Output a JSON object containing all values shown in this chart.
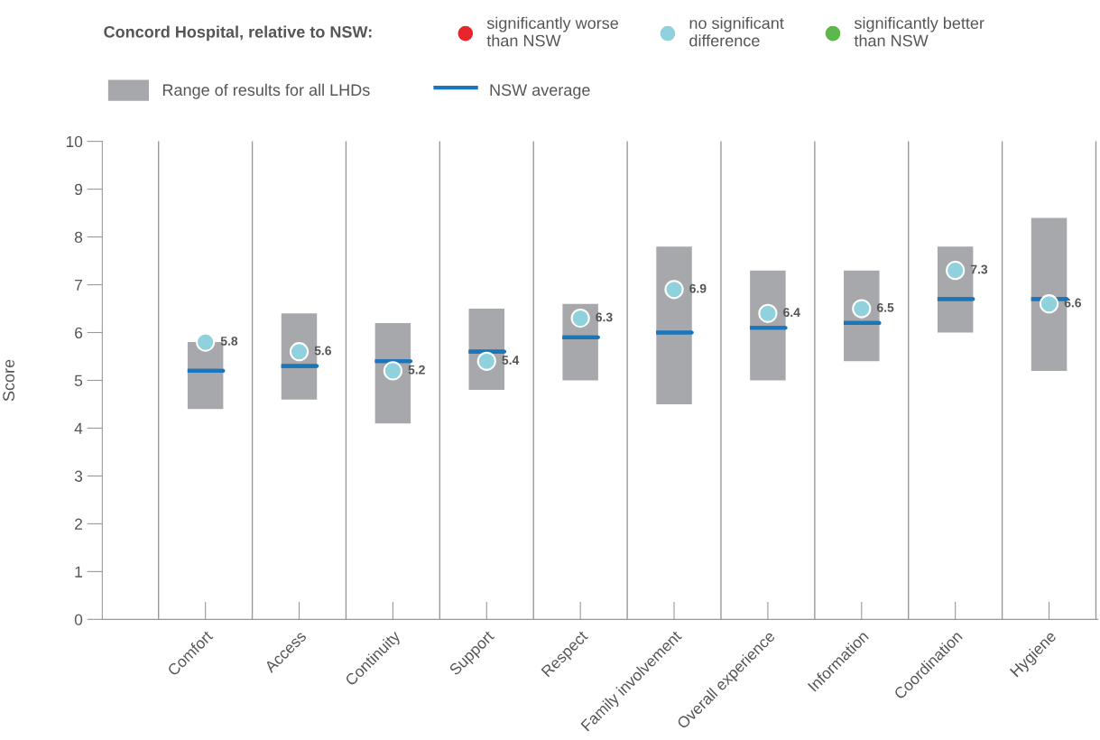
{
  "chart_data": {
    "type": "bar",
    "ylabel": "Score",
    "legend_title": "Concord Hospital, relative to NSW:",
    "legend": "top",
    "categories": [
      "Comfort",
      "Access",
      "Continuity",
      "Support",
      "Respect",
      "Family involvement",
      "Overall experience",
      "Information",
      "Coordination",
      "Hygiene"
    ],
    "ylim": [
      0,
      10
    ],
    "yticks": [
      0,
      1,
      2,
      3,
      4,
      5,
      6,
      7,
      8,
      9,
      10
    ],
    "grid": "x",
    "series": [
      {
        "name": "significantly worse\nthan NSW",
        "type": "scatter",
        "marker": "circle",
        "color": "#e8262a",
        "values": [
          null,
          null,
          null,
          null,
          null,
          null,
          null,
          null,
          null,
          null
        ]
      },
      {
        "name": "no significant\ndifference",
        "type": "scatter",
        "marker": "circle",
        "color": "#8fd1dc",
        "values": [
          5.8,
          5.6,
          5.2,
          5.4,
          6.3,
          6.9,
          6.4,
          6.5,
          7.3,
          6.6
        ],
        "value_labels": [
          "5.8",
          "5.6",
          "5.2",
          "5.4",
          "6.3",
          "6.9",
          "6.4",
          "6.5",
          "7.3",
          "6.6"
        ]
      },
      {
        "name": "significantly better\nthan NSW",
        "type": "scatter",
        "marker": "circle",
        "color": "#5cb84a",
        "values": [
          null,
          null,
          null,
          null,
          null,
          null,
          null,
          null,
          null,
          null
        ]
      },
      {
        "name": "Range of results for all LHDs",
        "color": "#a7a8ab",
        "base": [
          4.4,
          4.6,
          4.1,
          4.8,
          5.0,
          4.5,
          5.0,
          5.4,
          6.0,
          5.2
        ],
        "values": [
          1.4,
          1.8,
          2.1,
          1.7,
          1.6,
          3.3,
          2.3,
          1.9,
          1.8,
          3.2
        ]
      },
      {
        "name": "NSW average",
        "type": "box",
        "color": "#1a75bb",
        "boxes": [
          {
            "low": 5.2,
            "q1": 5.2,
            "median": 5.2,
            "q3": 5.2,
            "high": 5.2
          },
          {
            "low": 5.3,
            "q1": 5.3,
            "median": 5.3,
            "q3": 5.3,
            "high": 5.3
          },
          {
            "low": 5.4,
            "q1": 5.4,
            "median": 5.4,
            "q3": 5.4,
            "high": 5.4
          },
          {
            "low": 5.6,
            "q1": 5.6,
            "median": 5.6,
            "q3": 5.6,
            "high": 5.6
          },
          {
            "low": 5.9,
            "q1": 5.9,
            "median": 5.9,
            "q3": 5.9,
            "high": 5.9
          },
          {
            "low": 6.0,
            "q1": 6.0,
            "median": 6.0,
            "q3": 6.0,
            "high": 6.0
          },
          {
            "low": 6.1,
            "q1": 6.1,
            "median": 6.1,
            "q3": 6.1,
            "high": 6.1
          },
          {
            "low": 6.2,
            "q1": 6.2,
            "median": 6.2,
            "q3": 6.2,
            "high": 6.2
          },
          {
            "low": 6.7,
            "q1": 6.7,
            "median": 6.7,
            "q3": 6.7,
            "high": 6.7
          },
          {
            "low": 6.7,
            "q1": 6.7,
            "median": 6.7,
            "q3": 6.7,
            "high": 6.7
          }
        ]
      }
    ]
  }
}
